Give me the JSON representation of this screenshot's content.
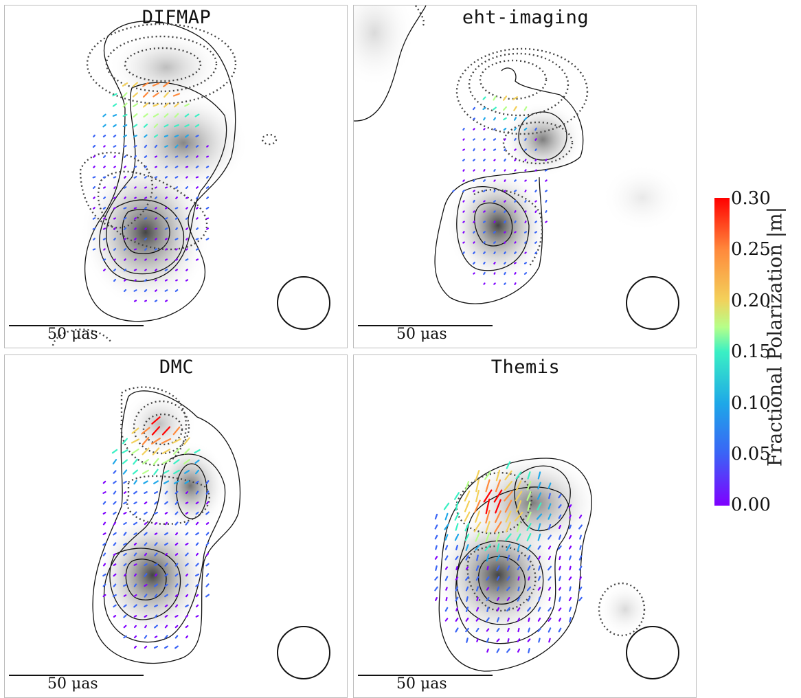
{
  "chart_data": [
    {
      "type": "heatmap",
      "title": "DIFMAP",
      "scale_bar": "50 μas"
    },
    {
      "type": "heatmap",
      "title": "eht-imaging",
      "scale_bar": "50 μas"
    },
    {
      "type": "heatmap",
      "title": "DMC",
      "scale_bar": "50 μas"
    },
    {
      "type": "heatmap",
      "title": "Themis",
      "scale_bar": "50 μas"
    }
  ],
  "colorbar": {
    "label": "Fractional Polarization |m|",
    "ticks": [
      "0.30",
      "0.25",
      "0.20",
      "0.15",
      "0.10",
      "0.05",
      "0.00"
    ],
    "range": [
      0.0,
      0.3
    ],
    "colormap": [
      "#7f00ff",
      "#3a64f6",
      "#1ea7e8",
      "#3af0c4",
      "#b6ff89",
      "#f3d05a",
      "#ff8a3c",
      "#ff0000"
    ]
  }
}
